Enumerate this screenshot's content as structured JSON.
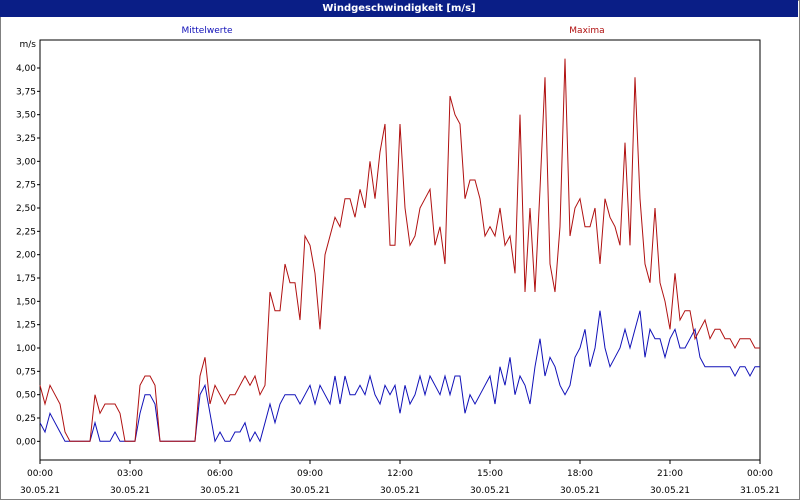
{
  "window": {
    "title": "Windgeschwindigkeit [m/s]"
  },
  "chart_data": {
    "type": "line",
    "title": "Windgeschwindigkeit [m/s]",
    "ylabel": "m/s",
    "ylim": [
      -0.2,
      4.3
    ],
    "xlim": [
      0,
      1440
    ],
    "grid": true,
    "colors": {
      "mittelwerte": "#1010b8",
      "maxima": "#b01010",
      "title_bg": "#0a1e86"
    },
    "y_ticks": [
      "0,00",
      "0,25",
      "0,50",
      "0,75",
      "1,00",
      "1,25",
      "1,50",
      "1,75",
      "2,00",
      "2,25",
      "2,50",
      "2,75",
      "3,00",
      "3,25",
      "3,50",
      "3,75",
      "4,00"
    ],
    "x_ticks": [
      {
        "time": "00:00",
        "date": "30.05.21"
      },
      {
        "time": "03:00",
        "date": "30.05.21"
      },
      {
        "time": "06:00",
        "date": "30.05.21"
      },
      {
        "time": "09:00",
        "date": "30.05.21"
      },
      {
        "time": "12:00",
        "date": "30.05.21"
      },
      {
        "time": "15:00",
        "date": "30.05.21"
      },
      {
        "time": "18:00",
        "date": "30.05.21"
      },
      {
        "time": "21:00",
        "date": "30.05.21"
      },
      {
        "time": "00:00",
        "date": "31.05.21"
      }
    ],
    "series": [
      {
        "name": "Mittelwerte",
        "x": [
          0,
          10,
          20,
          30,
          40,
          50,
          60,
          70,
          80,
          90,
          100,
          110,
          120,
          130,
          140,
          150,
          160,
          170,
          180,
          190,
          200,
          210,
          220,
          230,
          240,
          250,
          260,
          270,
          280,
          290,
          300,
          310,
          320,
          330,
          340,
          350,
          360,
          370,
          380,
          390,
          400,
          410,
          420,
          430,
          440,
          450,
          460,
          470,
          480,
          490,
          500,
          510,
          520,
          530,
          540,
          550,
          560,
          570,
          580,
          590,
          600,
          610,
          620,
          630,
          640,
          650,
          660,
          670,
          680,
          690,
          700,
          710,
          720,
          730,
          740,
          750,
          760,
          770,
          780,
          790,
          800,
          810,
          820,
          830,
          840,
          850,
          860,
          870,
          880,
          890,
          900,
          910,
          920,
          930,
          940,
          950,
          960,
          970,
          980,
          990,
          1000,
          1010,
          1020,
          1030,
          1040,
          1050,
          1060,
          1070,
          1080,
          1090,
          1100,
          1110,
          1120,
          1130,
          1140,
          1150,
          1160,
          1170,
          1180,
          1190,
          1200,
          1210,
          1220,
          1230,
          1240,
          1250,
          1260,
          1270,
          1280,
          1290,
          1300,
          1310,
          1320,
          1330,
          1340,
          1350,
          1360,
          1370,
          1380,
          1390,
          1400,
          1410,
          1420,
          1430,
          1440
        ],
        "values": [
          0.2,
          0.1,
          0.3,
          0.2,
          0.1,
          0.0,
          0.0,
          0.0,
          0.0,
          0.0,
          0.0,
          0.2,
          0.0,
          0.0,
          0.0,
          0.1,
          0.0,
          0.0,
          0.0,
          0.0,
          0.3,
          0.5,
          0.5,
          0.4,
          0.0,
          0.0,
          0.0,
          0.0,
          0.0,
          0.0,
          0.0,
          0.0,
          0.5,
          0.6,
          0.3,
          0.0,
          0.1,
          0.0,
          0.0,
          0.1,
          0.1,
          0.2,
          0.0,
          0.1,
          0.0,
          0.2,
          0.4,
          0.2,
          0.4,
          0.5,
          0.5,
          0.5,
          0.4,
          0.5,
          0.6,
          0.4,
          0.6,
          0.5,
          0.4,
          0.7,
          0.4,
          0.7,
          0.5,
          0.5,
          0.6,
          0.5,
          0.7,
          0.5,
          0.4,
          0.6,
          0.5,
          0.6,
          0.3,
          0.6,
          0.4,
          0.5,
          0.7,
          0.5,
          0.7,
          0.6,
          0.5,
          0.7,
          0.5,
          0.7,
          0.7,
          0.3,
          0.5,
          0.4,
          0.5,
          0.6,
          0.7,
          0.4,
          0.8,
          0.6,
          0.9,
          0.5,
          0.7,
          0.6,
          0.4,
          0.8,
          1.1,
          0.7,
          0.9,
          0.8,
          0.6,
          0.5,
          0.6,
          0.9,
          1.0,
          1.2,
          0.8,
          1.0,
          1.4,
          1.0,
          0.8,
          0.9,
          1.0,
          1.2,
          1.0,
          1.2,
          1.4,
          0.9,
          1.2,
          1.1,
          1.1,
          0.9,
          1.1,
          1.2,
          1.0,
          1.0,
          1.1,
          1.2,
          0.9,
          0.8,
          0.8,
          0.8,
          0.8,
          0.8,
          0.8,
          0.7,
          0.8,
          0.8,
          0.7,
          0.8,
          0.8
        ],
        "note_mapping": "values sampled every 10 minutes"
      },
      {
        "name": "Maxima",
        "x": [
          0,
          10,
          20,
          30,
          40,
          50,
          60,
          70,
          80,
          90,
          100,
          110,
          120,
          130,
          140,
          150,
          160,
          170,
          180,
          190,
          200,
          210,
          220,
          230,
          240,
          250,
          260,
          270,
          280,
          290,
          300,
          310,
          320,
          330,
          340,
          350,
          360,
          370,
          380,
          390,
          400,
          410,
          420,
          430,
          440,
          450,
          460,
          470,
          480,
          490,
          500,
          510,
          520,
          530,
          540,
          550,
          560,
          570,
          580,
          590,
          600,
          610,
          620,
          630,
          640,
          650,
          660,
          670,
          680,
          690,
          700,
          710,
          720,
          730,
          740,
          750,
          760,
          770,
          780,
          790,
          800,
          810,
          820,
          830,
          840,
          850,
          860,
          870,
          880,
          890,
          900,
          910,
          920,
          930,
          940,
          950,
          960,
          970,
          980,
          990,
          1000,
          1010,
          1020,
          1030,
          1040,
          1050,
          1060,
          1070,
          1080,
          1090,
          1100,
          1110,
          1120,
          1130,
          1140,
          1150,
          1160,
          1170,
          1180,
          1190,
          1200,
          1210,
          1220,
          1230,
          1240,
          1250,
          1260,
          1270,
          1280,
          1290,
          1300,
          1310,
          1320,
          1330,
          1340,
          1350,
          1360,
          1370,
          1380,
          1390,
          1400,
          1410,
          1420,
          1430,
          1440
        ],
        "values": [
          0.6,
          0.4,
          0.6,
          0.5,
          0.4,
          0.1,
          0.0,
          0.0,
          0.0,
          0.0,
          0.0,
          0.5,
          0.3,
          0.4,
          0.4,
          0.4,
          0.3,
          0.0,
          0.0,
          0.0,
          0.6,
          0.7,
          0.7,
          0.6,
          0.0,
          0.0,
          0.0,
          0.0,
          0.0,
          0.0,
          0.0,
          0.0,
          0.7,
          0.9,
          0.4,
          0.6,
          0.5,
          0.4,
          0.5,
          0.5,
          0.6,
          0.7,
          0.6,
          0.7,
          0.5,
          0.6,
          1.6,
          1.4,
          1.4,
          1.9,
          1.7,
          1.7,
          1.3,
          2.2,
          2.1,
          1.8,
          1.2,
          2.0,
          2.2,
          2.4,
          2.3,
          2.6,
          2.6,
          2.4,
          2.7,
          2.5,
          3.0,
          2.6,
          3.1,
          3.4,
          2.1,
          2.1,
          3.4,
          2.5,
          2.1,
          2.2,
          2.5,
          2.6,
          2.7,
          2.1,
          2.3,
          1.9,
          3.7,
          3.5,
          3.4,
          2.6,
          2.8,
          2.8,
          2.6,
          2.2,
          2.3,
          2.2,
          2.5,
          2.1,
          2.2,
          1.8,
          3.5,
          1.6,
          2.5,
          1.6,
          2.7,
          3.9,
          1.9,
          1.6,
          2.3,
          4.1,
          2.2,
          2.5,
          2.6,
          2.3,
          2.3,
          2.5,
          1.9,
          2.6,
          2.4,
          2.3,
          2.1,
          3.2,
          2.1,
          3.9,
          2.6,
          1.9,
          1.7,
          2.5,
          1.7,
          1.5,
          1.2,
          1.8,
          1.3,
          1.4,
          1.4,
          1.1,
          1.2,
          1.3,
          1.1,
          1.2,
          1.2,
          1.1,
          1.1,
          1.0,
          1.1,
          1.1,
          1.1,
          1.0,
          1.0
        ],
        "note_mapping": "values sampled every 10 minutes"
      }
    ],
    "legend": {
      "position": "top"
    }
  }
}
